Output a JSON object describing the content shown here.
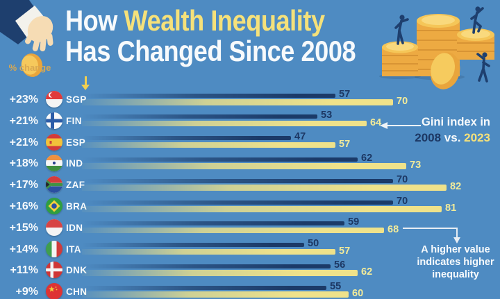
{
  "header": {
    "pct_change_label": "% change",
    "title_word1": "How",
    "title_highlight": "Wealth Inequality",
    "title_line2": "Has Changed Since 2008"
  },
  "legend": {
    "line1": "Gini index in",
    "year_2008": "2008",
    "vs": "vs.",
    "year_2023": "2023"
  },
  "note": {
    "line1": "A higher value",
    "line2": "indicates higher",
    "line3": "inequality"
  },
  "chart_data": {
    "type": "bar",
    "orientation": "horizontal",
    "title": "How Wealth Inequality Has Changed Since 2008",
    "value_name": "Gini index",
    "categories": [
      "SGP",
      "FIN",
      "ESP",
      "IND",
      "ZAF",
      "BRA",
      "IDN",
      "ITA",
      "DNK",
      "CHN"
    ],
    "pct_change": [
      "+23%",
      "+21%",
      "+21%",
      "+18%",
      "+17%",
      "+16%",
      "+15%",
      "+14%",
      "+11%",
      "+9%"
    ],
    "series": [
      {
        "name": "2008",
        "color": "#1b3a68",
        "values": [
          57,
          53,
          47,
          62,
          70,
          70,
          59,
          50,
          56,
          55
        ]
      },
      {
        "name": "2023",
        "color": "#efe28a",
        "values": [
          70,
          64,
          57,
          73,
          82,
          81,
          68,
          57,
          62,
          60
        ]
      }
    ],
    "flag_icons": [
      "flag-singapore",
      "flag-finland",
      "flag-spain",
      "flag-india",
      "flag-south-africa",
      "flag-brazil",
      "flag-indonesia",
      "flag-italy",
      "flag-denmark",
      "flag-china"
    ],
    "legend_position": "right",
    "grid": false,
    "axes_visible": false
  },
  "colors": {
    "background": "#4e8bc2",
    "bar_2008": "#1b3a68",
    "bar_2023": "#efe28a",
    "navy_text": "#1c3763",
    "pale_yellow_text": "#f2eb9a",
    "title_yellow": "#f5e17a",
    "text_white": "#f7fafc",
    "gold_label": "#d9a851",
    "arrow_yellow": "#f2d050",
    "coin_gold": "#edaa42"
  }
}
